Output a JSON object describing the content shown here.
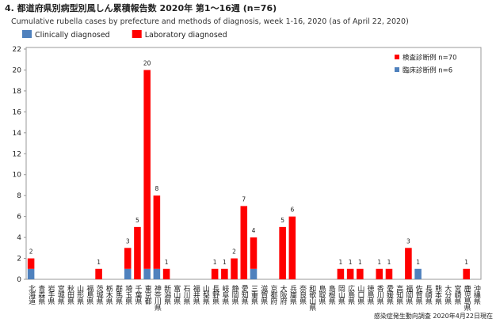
{
  "chart_data": {
    "type": "stacked_bar",
    "title": "4. 都道府県別病型別風しん累積報告数 2020年 第1～16週 (n=76)",
    "subtitle": "Cumulative rubella cases by prefecture and methods of diagnosis, week 1-16, 2020 (as of April 22, 2020)",
    "source": "感染症発生動向調査 2020年4月22日現在",
    "categories": [
      "北海道",
      "青森県",
      "岩手県",
      "宮城県",
      "秋田県",
      "山形県",
      "福島県",
      "茨城県",
      "栃木県",
      "群馬県",
      "埼玉県",
      "千葉県",
      "東京都",
      "神奈川県",
      "新潟県",
      "富山県",
      "石川県",
      "福井県",
      "山梨県",
      "長野県",
      "岐阜県",
      "静岡県",
      "愛知県",
      "三重県",
      "滋賀県",
      "京都府",
      "大阪府",
      "兵庫県",
      "奈良県",
      "和歌山県",
      "鳥取県",
      "島根県",
      "岡山県",
      "広島県",
      "山口県",
      "徳島県",
      "香川県",
      "愛媛県",
      "高知県",
      "福岡県",
      "佐賀県",
      "長崎県",
      "熊本県",
      "大分県",
      "宮崎県",
      "鹿児島県",
      "沖縄県"
    ],
    "series": [
      {
        "name": "Clinically diagnosed",
        "inner_legend": "臨床診断例 n=6",
        "color": "#4f81bd",
        "values": [
          1,
          0,
          0,
          0,
          0,
          0,
          0,
          0,
          0,
          0,
          1,
          0,
          1,
          1,
          0,
          0,
          0,
          0,
          0,
          0,
          0,
          0,
          0,
          1,
          0,
          0,
          0,
          0,
          0,
          0,
          0,
          0,
          0,
          0,
          0,
          0,
          0,
          0,
          0,
          0,
          1,
          0,
          0,
          0,
          0,
          0,
          0
        ]
      },
      {
        "name": "Laboratory diagnosed",
        "inner_legend": "検査診断例 n=70",
        "color": "#ff0000",
        "values": [
          1,
          0,
          0,
          0,
          0,
          0,
          0,
          1,
          0,
          0,
          2,
          5,
          19,
          7,
          1,
          0,
          0,
          0,
          0,
          1,
          1,
          2,
          7,
          3,
          0,
          0,
          5,
          6,
          0,
          0,
          0,
          0,
          1,
          1,
          1,
          0,
          1,
          1,
          0,
          3,
          0,
          0,
          0,
          0,
          0,
          1,
          0
        ]
      }
    ],
    "totals": [
      2,
      null,
      null,
      null,
      null,
      null,
      null,
      1,
      null,
      null,
      3,
      5,
      20,
      8,
      1,
      null,
      null,
      null,
      null,
      1,
      1,
      2,
      7,
      4,
      null,
      null,
      5,
      6,
      null,
      null,
      null,
      null,
      1,
      1,
      1,
      null,
      1,
      1,
      null,
      3,
      1,
      null,
      null,
      null,
      null,
      1,
      null
    ],
    "ylim": [
      0,
      22
    ],
    "yticks": [
      0,
      2,
      4,
      6,
      8,
      10,
      12,
      14,
      16,
      18,
      20,
      22
    ],
    "grid": false
  }
}
